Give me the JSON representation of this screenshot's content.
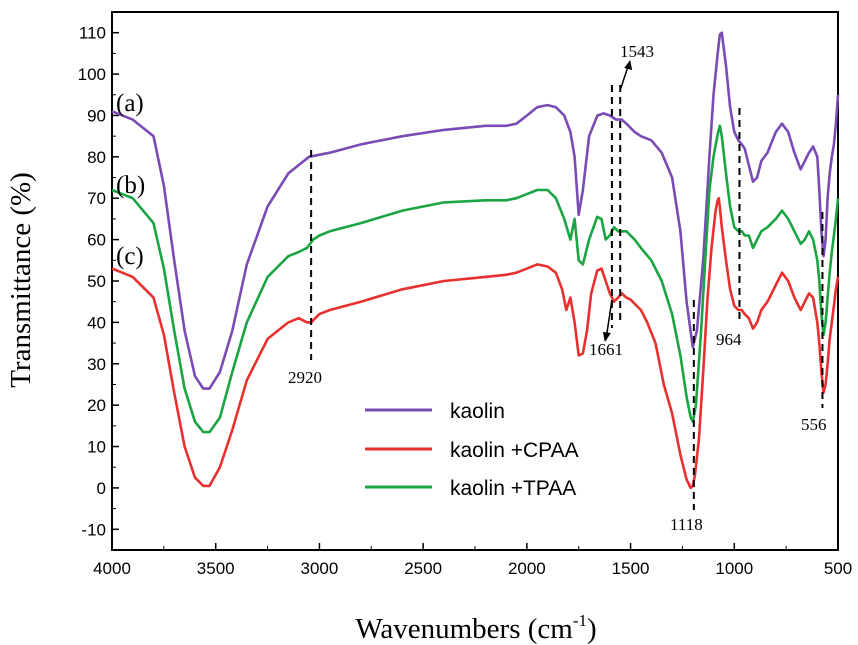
{
  "chart_data": {
    "type": "line",
    "xlabel": "Wavenumbers (cm",
    "xlabel_sup": "-1",
    "xlabel_close": ")",
    "ylabel": "Transmittance (%)",
    "xlim": [
      4000,
      500
    ],
    "ylim": [
      -15,
      115
    ],
    "xticks": [
      4000,
      3500,
      3000,
      2500,
      2000,
      1500,
      1000,
      500
    ],
    "yticks": [
      -10,
      0,
      10,
      20,
      30,
      40,
      50,
      60,
      70,
      80,
      90,
      100,
      110
    ],
    "legend_position": "bottom-center",
    "curve_labels": [
      "(a)",
      "(b)",
      "(c)"
    ],
    "series": [
      {
        "name": "kaolin",
        "color": "#7b4bb5",
        "x": [
          4000,
          3900,
          3800,
          3750,
          3700,
          3650,
          3600,
          3560,
          3530,
          3480,
          3420,
          3350,
          3250,
          3150,
          3050,
          2950,
          2800,
          2600,
          2400,
          2200,
          2100,
          2050,
          2000,
          1950,
          1900,
          1860,
          1820,
          1790,
          1770,
          1750,
          1730,
          1700,
          1660,
          1630,
          1600,
          1570,
          1543,
          1520,
          1500,
          1480,
          1450,
          1400,
          1350,
          1300,
          1260,
          1230,
          1200,
          1180,
          1150,
          1120,
          1100,
          1080,
          1070,
          1060,
          1040,
          1020,
          1000,
          980,
          964,
          950,
          930,
          910,
          890,
          870,
          840,
          800,
          770,
          740,
          710,
          680,
          660,
          640,
          620,
          600,
          590,
          580,
          570,
          560,
          550,
          540,
          530,
          520,
          510,
          500
        ],
        "y": [
          91,
          89,
          85,
          73,
          55,
          38,
          27,
          24,
          24,
          28,
          38,
          54,
          68,
          76,
          80,
          81,
          83,
          85,
          86.5,
          87.5,
          87.5,
          88,
          90,
          92,
          92.5,
          92,
          90,
          86,
          80,
          66,
          72,
          85,
          90,
          90.5,
          90,
          89,
          89,
          88,
          87,
          86,
          85,
          84,
          81,
          75,
          62,
          45,
          34,
          38,
          55,
          80,
          95,
          105,
          109.5,
          110,
          102,
          92,
          86,
          84,
          83,
          82,
          78,
          74,
          75,
          79,
          81,
          86,
          88,
          86,
          81,
          77,
          79,
          81,
          82.5,
          80,
          72,
          62,
          56,
          60,
          70,
          76,
          80,
          83,
          88,
          95
        ]
      },
      {
        "name": "kaolin +CPAA",
        "color": "#e8302f",
        "x": [
          4000,
          3900,
          3800,
          3750,
          3700,
          3650,
          3600,
          3560,
          3530,
          3480,
          3420,
          3350,
          3250,
          3150,
          3100,
          3060,
          3040,
          3000,
          2950,
          2800,
          2600,
          2400,
          2200,
          2100,
          2050,
          2000,
          1950,
          1900,
          1860,
          1830,
          1810,
          1790,
          1770,
          1750,
          1730,
          1710,
          1690,
          1661,
          1640,
          1620,
          1600,
          1580,
          1560,
          1543,
          1520,
          1500,
          1480,
          1450,
          1420,
          1380,
          1340,
          1300,
          1260,
          1230,
          1210,
          1200,
          1190,
          1170,
          1150,
          1130,
          1110,
          1090,
          1080,
          1075,
          1070,
          1060,
          1040,
          1020,
          1000,
          980,
          964,
          950,
          930,
          910,
          890,
          870,
          840,
          800,
          770,
          740,
          710,
          680,
          660,
          640,
          620,
          600,
          590,
          580,
          570,
          560,
          550,
          540,
          530,
          520,
          510,
          500
        ],
        "y": [
          53,
          51,
          46,
          37,
          23,
          10,
          2.5,
          0.5,
          0.5,
          5,
          14,
          26,
          36,
          40,
          41,
          40,
          40,
          42,
          43,
          45,
          48,
          50,
          51,
          51.5,
          52,
          53,
          54,
          53.5,
          52,
          48,
          43,
          46,
          40,
          32,
          32.5,
          38,
          47,
          52.5,
          53,
          50,
          47,
          45,
          46,
          47,
          46,
          45.5,
          44.5,
          43,
          40,
          35,
          25,
          18,
          8,
          2,
          0,
          0.5,
          3,
          12,
          28,
          45,
          58,
          67,
          69.5,
          70,
          68,
          63,
          55,
          48,
          44,
          43,
          43,
          42,
          41,
          38.5,
          40,
          43,
          45,
          49,
          52,
          50,
          46,
          43,
          45,
          47,
          46,
          40,
          35,
          28,
          23,
          25,
          30,
          36,
          40,
          44,
          48,
          51
        ]
      },
      {
        "name": "kaolin +TPAA",
        "color": "#1aa442",
        "x": [
          4000,
          3900,
          3800,
          3750,
          3700,
          3650,
          3600,
          3560,
          3530,
          3480,
          3420,
          3350,
          3250,
          3150,
          3100,
          3060,
          3030,
          3000,
          2950,
          2800,
          2600,
          2400,
          2200,
          2100,
          2050,
          2000,
          1950,
          1900,
          1860,
          1820,
          1790,
          1770,
          1750,
          1730,
          1700,
          1661,
          1640,
          1620,
          1600,
          1580,
          1560,
          1543,
          1520,
          1500,
          1480,
          1450,
          1400,
          1350,
          1300,
          1260,
          1230,
          1210,
          1200,
          1185,
          1160,
          1140,
          1120,
          1100,
          1080,
          1070,
          1060,
          1040,
          1020,
          1000,
          980,
          964,
          950,
          930,
          910,
          890,
          870,
          840,
          800,
          770,
          740,
          710,
          680,
          660,
          640,
          620,
          600,
          590,
          580,
          570,
          560,
          550,
          540,
          530,
          520,
          510,
          500
        ],
        "y": [
          72,
          70,
          64,
          53,
          38,
          24,
          16,
          13.5,
          13.5,
          17,
          28,
          40,
          51,
          56,
          57,
          58,
          60,
          61,
          62,
          64,
          67,
          69,
          69.5,
          69.5,
          70,
          71,
          72,
          72,
          70,
          65,
          60,
          65,
          55,
          54,
          60,
          65.5,
          65,
          60,
          61,
          63,
          62,
          62,
          62,
          61,
          60,
          58,
          55,
          50,
          42,
          32,
          22,
          17,
          16,
          20,
          38,
          55,
          72,
          80,
          85.5,
          87.5,
          85,
          76,
          68,
          63,
          62,
          62,
          61,
          61,
          58,
          60,
          62,
          63,
          65,
          67,
          65,
          62,
          59,
          60,
          62,
          60,
          55,
          50,
          42,
          37,
          40,
          46,
          52,
          57,
          61,
          65,
          70
        ]
      }
    ],
    "annotations": [
      {
        "text": "2920",
        "x": 3040
      },
      {
        "text": "1661",
        "x": 1590
      },
      {
        "text": "1543",
        "x": 1550
      },
      {
        "text": "964",
        "x": 975
      },
      {
        "text": "1118",
        "x": 1195
      },
      {
        "text": "556",
        "x": 575
      }
    ]
  }
}
